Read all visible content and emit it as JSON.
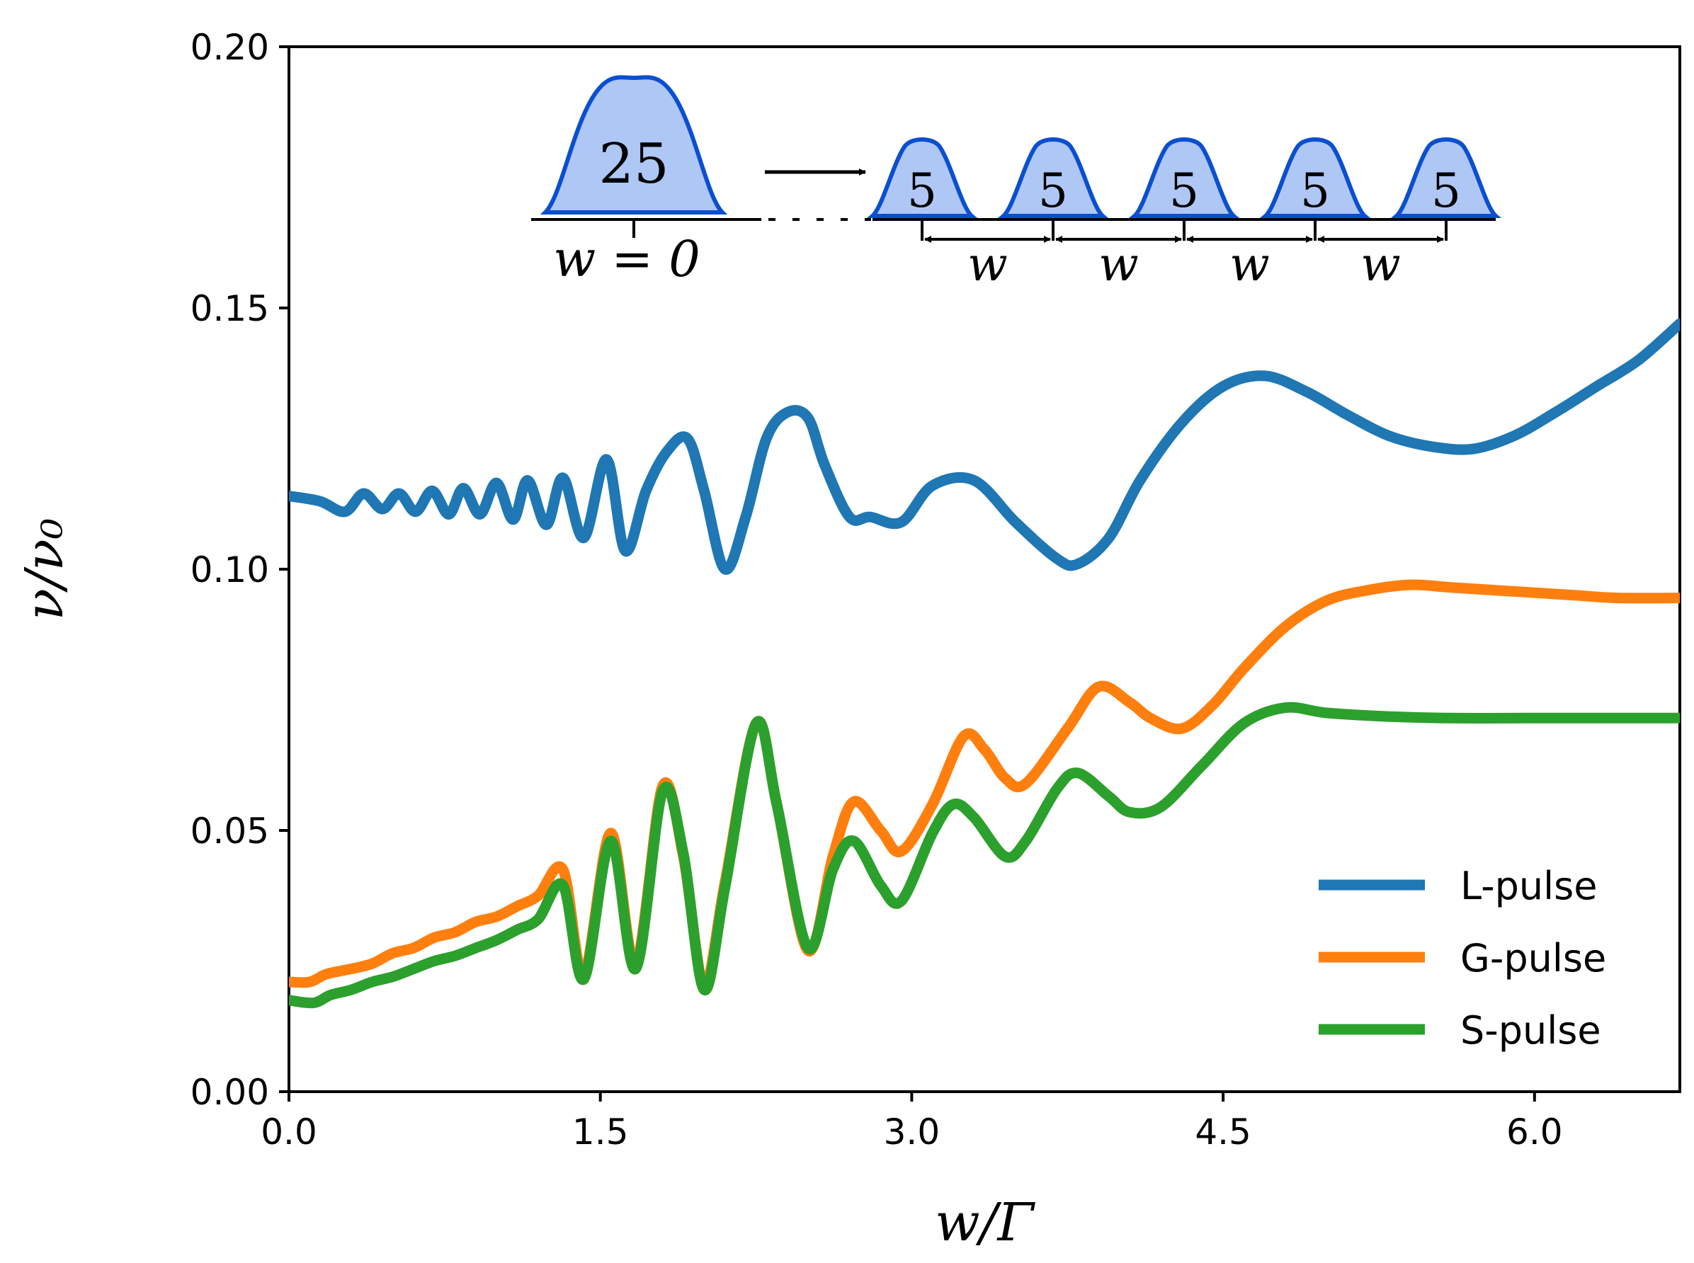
{
  "chart_data": {
    "type": "line",
    "title": "",
    "xlabel": "w/Γ",
    "ylabel": "ν/ν₀",
    "xlim": [
      0.0,
      6.7
    ],
    "ylim": [
      0.0,
      0.2
    ],
    "xticks": [
      "0.0",
      "1.5",
      "3.0",
      "4.5",
      "6.0"
    ],
    "xtick_values": [
      0.0,
      1.5,
      3.0,
      4.5,
      6.0
    ],
    "yticks": [
      "0.00",
      "0.05",
      "0.10",
      "0.15",
      "0.20"
    ],
    "ytick_values": [
      0.0,
      0.05,
      0.1,
      0.15,
      0.2
    ],
    "grid": false,
    "legend_position": "bottom-right",
    "series": [
      {
        "name": "L-pulse",
        "color": "#1f77b4",
        "x": [
          0.0,
          0.15,
          0.27,
          0.36,
          0.45,
          0.53,
          0.61,
          0.69,
          0.77,
          0.84,
          0.92,
          1.0,
          1.08,
          1.15,
          1.24,
          1.32,
          1.42,
          1.53,
          1.62,
          1.72,
          1.82,
          1.92,
          2.0,
          2.1,
          2.2,
          2.3,
          2.4,
          2.5,
          2.58,
          2.7,
          2.8,
          2.95,
          3.1,
          3.3,
          3.5,
          3.7,
          3.8,
          3.95,
          4.1,
          4.3,
          4.5,
          4.7,
          4.9,
          5.1,
          5.3,
          5.5,
          5.7,
          5.9,
          6.1,
          6.3,
          6.5,
          6.7
        ],
        "y": [
          0.114,
          0.113,
          0.111,
          0.1145,
          0.1115,
          0.1145,
          0.111,
          0.115,
          0.1105,
          0.1155,
          0.1105,
          0.1165,
          0.1095,
          0.117,
          0.1085,
          0.1175,
          0.106,
          0.121,
          0.1035,
          0.115,
          0.1225,
          0.125,
          0.115,
          0.1,
          0.11,
          0.125,
          0.13,
          0.129,
          0.12,
          0.11,
          0.11,
          0.109,
          0.116,
          0.117,
          0.109,
          0.102,
          0.101,
          0.106,
          0.117,
          0.128,
          0.135,
          0.137,
          0.134,
          0.1295,
          0.1255,
          0.1235,
          0.123,
          0.1255,
          0.13,
          0.135,
          0.14,
          0.147
        ]
      },
      {
        "name": "G-pulse",
        "color": "#ff7f0e",
        "x": [
          0.0,
          0.1,
          0.18,
          0.3,
          0.4,
          0.5,
          0.6,
          0.7,
          0.8,
          0.9,
          1.0,
          1.1,
          1.2,
          1.32,
          1.42,
          1.55,
          1.67,
          1.8,
          1.9,
          2.0,
          2.1,
          2.25,
          2.35,
          2.5,
          2.62,
          2.72,
          2.85,
          2.95,
          3.1,
          3.25,
          3.35,
          3.45,
          3.55,
          3.75,
          3.9,
          4.05,
          4.15,
          4.3,
          4.45,
          4.6,
          4.8,
          5.0,
          5.2,
          5.4,
          5.6,
          5.8,
          6.0,
          6.2,
          6.4,
          6.7
        ],
        "y": [
          0.021,
          0.021,
          0.0225,
          0.0235,
          0.0245,
          0.0265,
          0.0275,
          0.0295,
          0.0305,
          0.0325,
          0.0335,
          0.0355,
          0.0375,
          0.0425,
          0.0225,
          0.0495,
          0.0245,
          0.0585,
          0.045,
          0.0205,
          0.04,
          0.0705,
          0.055,
          0.027,
          0.045,
          0.0555,
          0.05,
          0.046,
          0.055,
          0.068,
          0.0655,
          0.06,
          0.059,
          0.0695,
          0.0775,
          0.0745,
          0.0715,
          0.0695,
          0.074,
          0.081,
          0.089,
          0.094,
          0.096,
          0.097,
          0.0965,
          0.096,
          0.0955,
          0.095,
          0.0945,
          0.0945
        ]
      },
      {
        "name": "S-pulse",
        "color": "#2ca02c",
        "x": [
          0.0,
          0.12,
          0.2,
          0.3,
          0.4,
          0.5,
          0.6,
          0.7,
          0.8,
          0.9,
          1.0,
          1.1,
          1.2,
          1.32,
          1.42,
          1.55,
          1.67,
          1.8,
          1.9,
          2.0,
          2.1,
          2.25,
          2.35,
          2.5,
          2.62,
          2.72,
          2.85,
          2.95,
          3.1,
          3.2,
          3.3,
          3.45,
          3.55,
          3.7,
          3.8,
          3.95,
          4.05,
          4.2,
          4.4,
          4.6,
          4.8,
          5.0,
          5.3,
          5.6,
          6.0,
          6.4,
          6.7
        ],
        "y": [
          0.0175,
          0.017,
          0.0185,
          0.0195,
          0.021,
          0.022,
          0.0235,
          0.025,
          0.026,
          0.0275,
          0.029,
          0.031,
          0.033,
          0.0395,
          0.0215,
          0.048,
          0.0235,
          0.0575,
          0.0455,
          0.0195,
          0.039,
          0.0705,
          0.055,
          0.0275,
          0.0425,
          0.048,
          0.0395,
          0.0365,
          0.0495,
          0.055,
          0.0525,
          0.045,
          0.048,
          0.058,
          0.061,
          0.0565,
          0.0535,
          0.0545,
          0.0625,
          0.0705,
          0.0735,
          0.0725,
          0.0718,
          0.0715,
          0.0715,
          0.0715,
          0.0715
        ]
      }
    ],
    "inset": {
      "big_pulse_label": "25",
      "small_pulse_labels": [
        "5",
        "5",
        "5",
        "5",
        "5"
      ],
      "zero_label": "w = 0",
      "spacing_labels": [
        "w",
        "w",
        "w",
        "w"
      ]
    }
  },
  "colors": {
    "pulse_fill": "#aec7f5",
    "pulse_stroke": "#0b4fd1"
  }
}
